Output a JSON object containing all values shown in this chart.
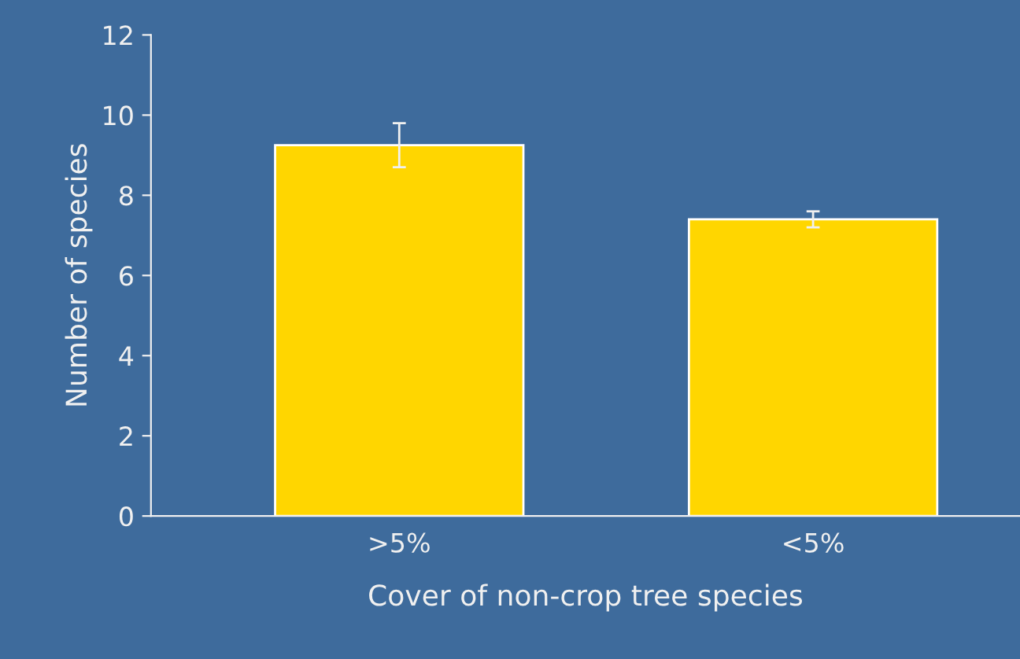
{
  "chart_data": {
    "type": "bar",
    "xlabel": "Cover of non-crop tree species",
    "ylabel": "Number of species",
    "categories": [
      ">5%",
      "<5%"
    ],
    "values": [
      9.25,
      7.4
    ],
    "errors": [
      0.55,
      0.2
    ],
    "color": "#ffd600",
    "ylim": [
      0,
      12
    ],
    "yticks": [
      0,
      2,
      4,
      6,
      8,
      10,
      12
    ],
    "grid": false
  }
}
